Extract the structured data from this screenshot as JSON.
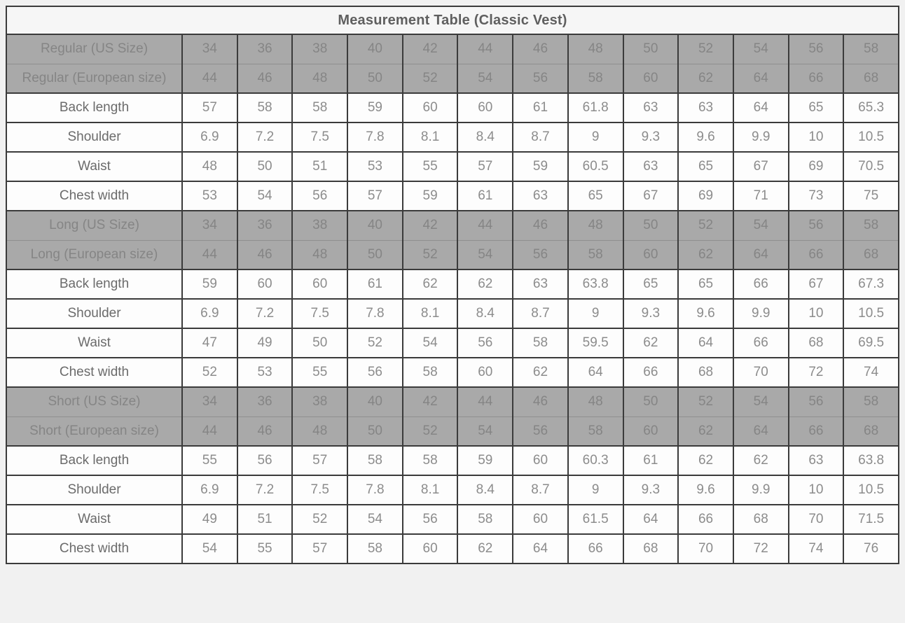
{
  "page": {
    "background": "#f1f1f1"
  },
  "table": {
    "title": "Measurement Table (Classic Vest)",
    "colors": {
      "border_dark": "#3b3b3b",
      "border_light": "#8f8f8f",
      "title_bg": "#f6f6f6",
      "title_text": "#5f5f5f",
      "size_row_bg": "#a9a9a9",
      "size_row_text": "#858585",
      "data_row_bg": "#fdfdfd",
      "label_text": "#6b6b6b",
      "value_text": "#8c8c8c"
    },
    "sections": [
      {
        "name": "Regular",
        "rows": [
          {
            "kind": "size-first",
            "label": "Regular (US Size)",
            "values": [
              "34",
              "36",
              "38",
              "40",
              "42",
              "44",
              "46",
              "48",
              "50",
              "52",
              "54",
              "56",
              "58"
            ]
          },
          {
            "kind": "size-second",
            "label": "Regular (European size)",
            "values": [
              "44",
              "46",
              "48",
              "50",
              "52",
              "54",
              "56",
              "58",
              "60",
              "62",
              "64",
              "66",
              "68"
            ]
          },
          {
            "kind": "measure",
            "label": "Back length",
            "values": [
              "57",
              "58",
              "58",
              "59",
              "60",
              "60",
              "61",
              "61.8",
              "63",
              "63",
              "64",
              "65",
              "65.3"
            ]
          },
          {
            "kind": "measure",
            "label": "Shoulder",
            "values": [
              "6.9",
              "7.2",
              "7.5",
              "7.8",
              "8.1",
              "8.4",
              "8.7",
              "9",
              "9.3",
              "9.6",
              "9.9",
              "10",
              "10.5"
            ]
          },
          {
            "kind": "measure",
            "label": "Waist",
            "values": [
              "48",
              "50",
              "51",
              "53",
              "55",
              "57",
              "59",
              "60.5",
              "63",
              "65",
              "67",
              "69",
              "70.5"
            ]
          },
          {
            "kind": "measure",
            "label": "Chest width",
            "values": [
              "53",
              "54",
              "56",
              "57",
              "59",
              "61",
              "63",
              "65",
              "67",
              "69",
              "71",
              "73",
              "75"
            ]
          }
        ]
      },
      {
        "name": "Long",
        "rows": [
          {
            "kind": "size-first",
            "label": "Long (US Size)",
            "values": [
              "34",
              "36",
              "38",
              "40",
              "42",
              "44",
              "46",
              "48",
              "50",
              "52",
              "54",
              "56",
              "58"
            ]
          },
          {
            "kind": "size-second",
            "label": "Long (European size)",
            "values": [
              "44",
              "46",
              "48",
              "50",
              "52",
              "54",
              "56",
              "58",
              "60",
              "62",
              "64",
              "66",
              "68"
            ]
          },
          {
            "kind": "measure",
            "label": "Back length",
            "values": [
              "59",
              "60",
              "60",
              "61",
              "62",
              "62",
              "63",
              "63.8",
              "65",
              "65",
              "66",
              "67",
              "67.3"
            ]
          },
          {
            "kind": "measure",
            "label": "Shoulder",
            "values": [
              "6.9",
              "7.2",
              "7.5",
              "7.8",
              "8.1",
              "8.4",
              "8.7",
              "9",
              "9.3",
              "9.6",
              "9.9",
              "10",
              "10.5"
            ]
          },
          {
            "kind": "measure",
            "label": "Waist",
            "values": [
              "47",
              "49",
              "50",
              "52",
              "54",
              "56",
              "58",
              "59.5",
              "62",
              "64",
              "66",
              "68",
              "69.5"
            ]
          },
          {
            "kind": "measure",
            "label": "Chest width",
            "values": [
              "52",
              "53",
              "55",
              "56",
              "58",
              "60",
              "62",
              "64",
              "66",
              "68",
              "70",
              "72",
              "74"
            ]
          }
        ]
      },
      {
        "name": "Short",
        "rows": [
          {
            "kind": "size-first",
            "label": "Short (US Size)",
            "values": [
              "34",
              "36",
              "38",
              "40",
              "42",
              "44",
              "46",
              "48",
              "50",
              "52",
              "54",
              "56",
              "58"
            ]
          },
          {
            "kind": "size-second",
            "label": "Short (European size)",
            "values": [
              "44",
              "46",
              "48",
              "50",
              "52",
              "54",
              "56",
              "58",
              "60",
              "62",
              "64",
              "66",
              "68"
            ]
          },
          {
            "kind": "measure",
            "label": "Back length",
            "values": [
              "55",
              "56",
              "57",
              "58",
              "58",
              "59",
              "60",
              "60.3",
              "61",
              "62",
              "62",
              "63",
              "63.8"
            ]
          },
          {
            "kind": "measure",
            "label": "Shoulder",
            "values": [
              "6.9",
              "7.2",
              "7.5",
              "7.8",
              "8.1",
              "8.4",
              "8.7",
              "9",
              "9.3",
              "9.6",
              "9.9",
              "10",
              "10.5"
            ]
          },
          {
            "kind": "measure",
            "label": "Waist",
            "values": [
              "49",
              "51",
              "52",
              "54",
              "56",
              "58",
              "60",
              "61.5",
              "64",
              "66",
              "68",
              "70",
              "71.5"
            ]
          },
          {
            "kind": "measure",
            "label": "Chest width",
            "values": [
              "54",
              "55",
              "57",
              "58",
              "60",
              "62",
              "64",
              "66",
              "68",
              "70",
              "72",
              "74",
              "76"
            ]
          }
        ]
      }
    ]
  }
}
